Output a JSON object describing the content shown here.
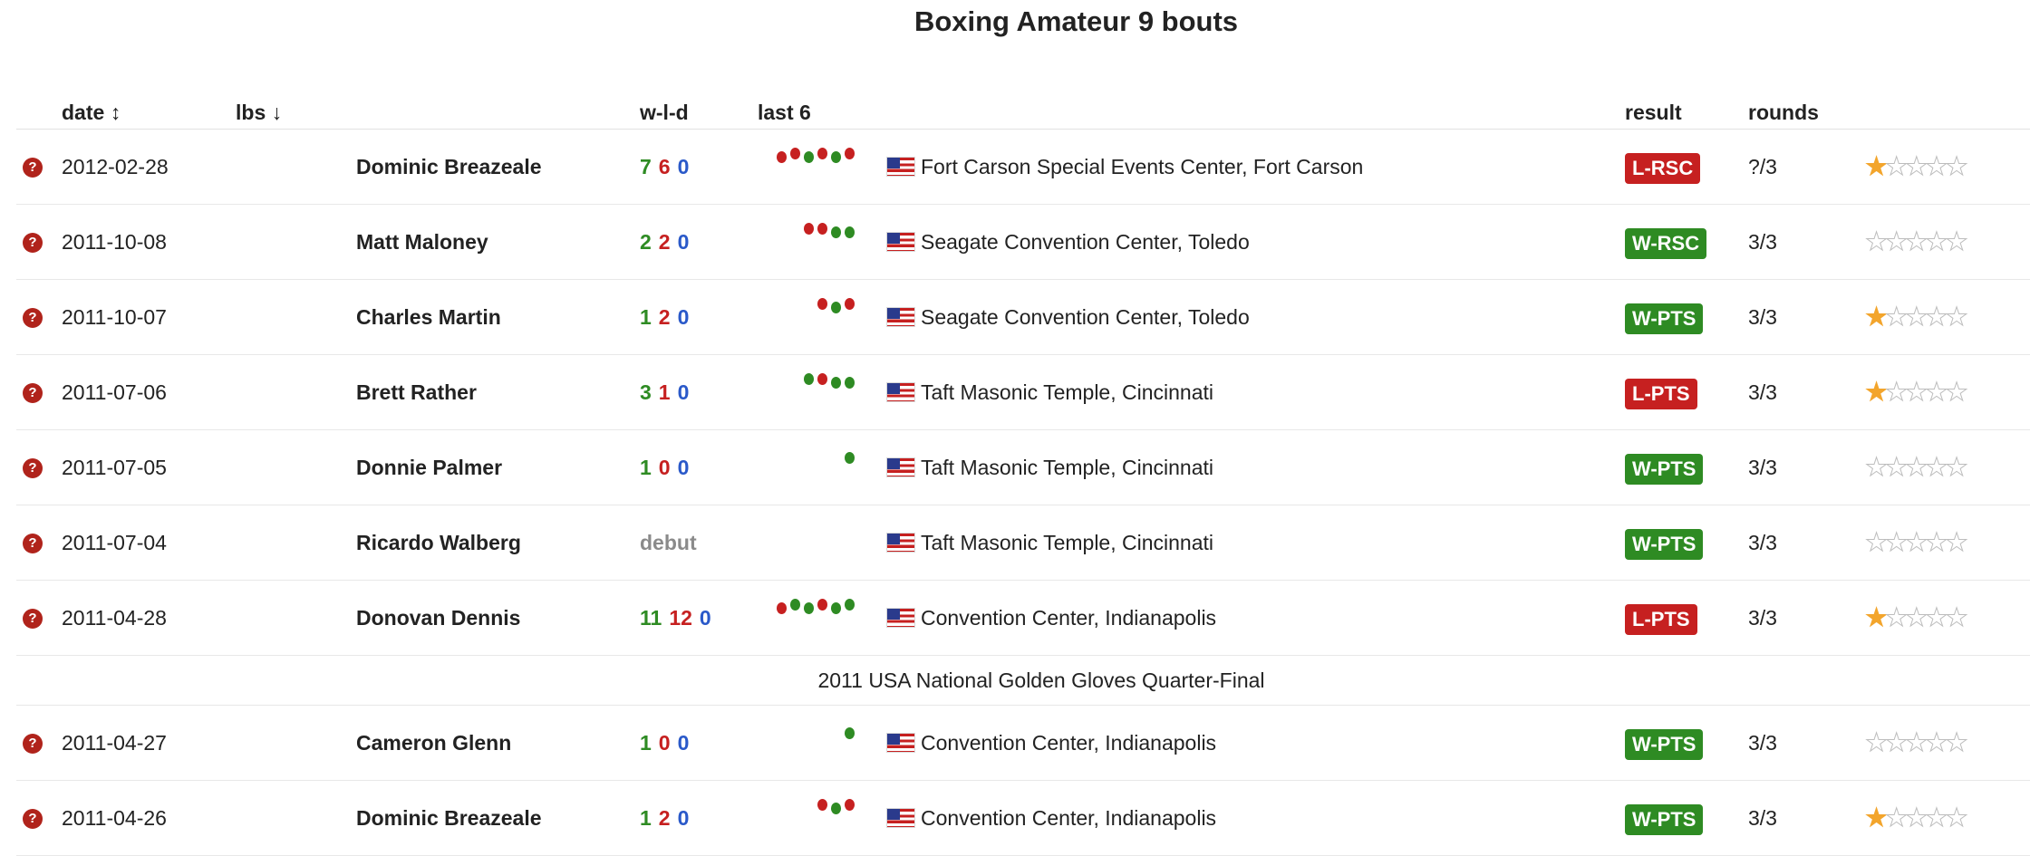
{
  "title": "Boxing Amateur 9 bouts",
  "headers": {
    "date": "date",
    "date_sort_icon": "↕",
    "lbs": "lbs",
    "lbs_sort_icon": "↓",
    "wld": "w-l-d",
    "last6": "last 6",
    "result": "result",
    "rounds": "rounds"
  },
  "colors": {
    "win": "#2e8b23",
    "loss": "#c62020",
    "draw": "#2a59c9",
    "star": "#f3a52c",
    "question_icon": "#b0231b"
  },
  "icons": {
    "info": "question-circle-icon",
    "flag": "us-flag-icon",
    "rating": "star-icon"
  },
  "question_glyph": "?",
  "bouts": [
    {
      "date": "2012-02-28",
      "opponent": "Dominic Breazeale",
      "w": "7",
      "l": "6",
      "d": "0",
      "debut": "",
      "last6": [
        "L",
        "L",
        "W",
        "L",
        "W",
        "L"
      ],
      "venue": "Fort Carson Special Events Center, Fort Carson",
      "result": "L-RSC",
      "outcome": "loss",
      "rounds": "?/3",
      "rating": 1
    },
    {
      "date": "2011-10-08",
      "opponent": "Matt Maloney",
      "w": "2",
      "l": "2",
      "d": "0",
      "debut": "",
      "last6": [
        "L",
        "L",
        "W",
        "W"
      ],
      "venue": "Seagate Convention Center, Toledo",
      "result": "W-RSC",
      "outcome": "win",
      "rounds": "3/3",
      "rating": 0
    },
    {
      "date": "2011-10-07",
      "opponent": "Charles Martin",
      "w": "1",
      "l": "2",
      "d": "0",
      "debut": "",
      "last6": [
        "L",
        "W",
        "L"
      ],
      "venue": "Seagate Convention Center, Toledo",
      "result": "W-PTS",
      "outcome": "win",
      "rounds": "3/3",
      "rating": 1
    },
    {
      "date": "2011-07-06",
      "opponent": "Brett Rather",
      "w": "3",
      "l": "1",
      "d": "0",
      "debut": "",
      "last6": [
        "W",
        "L",
        "W",
        "W"
      ],
      "venue": "Taft Masonic Temple, Cincinnati",
      "result": "L-PTS",
      "outcome": "loss",
      "rounds": "3/3",
      "rating": 1
    },
    {
      "date": "2011-07-05",
      "opponent": "Donnie Palmer",
      "w": "1",
      "l": "0",
      "d": "0",
      "debut": "",
      "last6": [
        "W"
      ],
      "venue": "Taft Masonic Temple, Cincinnati",
      "result": "W-PTS",
      "outcome": "win",
      "rounds": "3/3",
      "rating": 0
    },
    {
      "date": "2011-07-04",
      "opponent": "Ricardo Walberg",
      "w": "",
      "l": "",
      "d": "",
      "debut": "debut",
      "last6": [],
      "venue": "Taft Masonic Temple, Cincinnati",
      "result": "W-PTS",
      "outcome": "win",
      "rounds": "3/3",
      "rating": 0
    },
    {
      "date": "2011-04-28",
      "opponent": "Donovan Dennis",
      "w": "11",
      "l": "12",
      "d": "0",
      "debut": "",
      "last6": [
        "L",
        "W",
        "W",
        "L",
        "W",
        "W"
      ],
      "venue": "Convention Center, Indianapolis",
      "result": "L-PTS",
      "outcome": "loss",
      "rounds": "3/3",
      "rating": 1,
      "note": "2011 USA National Golden Gloves Quarter-Final"
    },
    {
      "date": "2011-04-27",
      "opponent": "Cameron Glenn",
      "w": "1",
      "l": "0",
      "d": "0",
      "debut": "",
      "last6": [
        "W"
      ],
      "venue": "Convention Center, Indianapolis",
      "result": "W-PTS",
      "outcome": "win",
      "rounds": "3/3",
      "rating": 0
    },
    {
      "date": "2011-04-26",
      "opponent": "Dominic Breazeale",
      "w": "1",
      "l": "2",
      "d": "0",
      "debut": "",
      "last6": [
        "L",
        "W",
        "L"
      ],
      "venue": "Convention Center, Indianapolis",
      "result": "W-PTS",
      "outcome": "win",
      "rounds": "3/3",
      "rating": 1
    }
  ],
  "max_rating": 5
}
